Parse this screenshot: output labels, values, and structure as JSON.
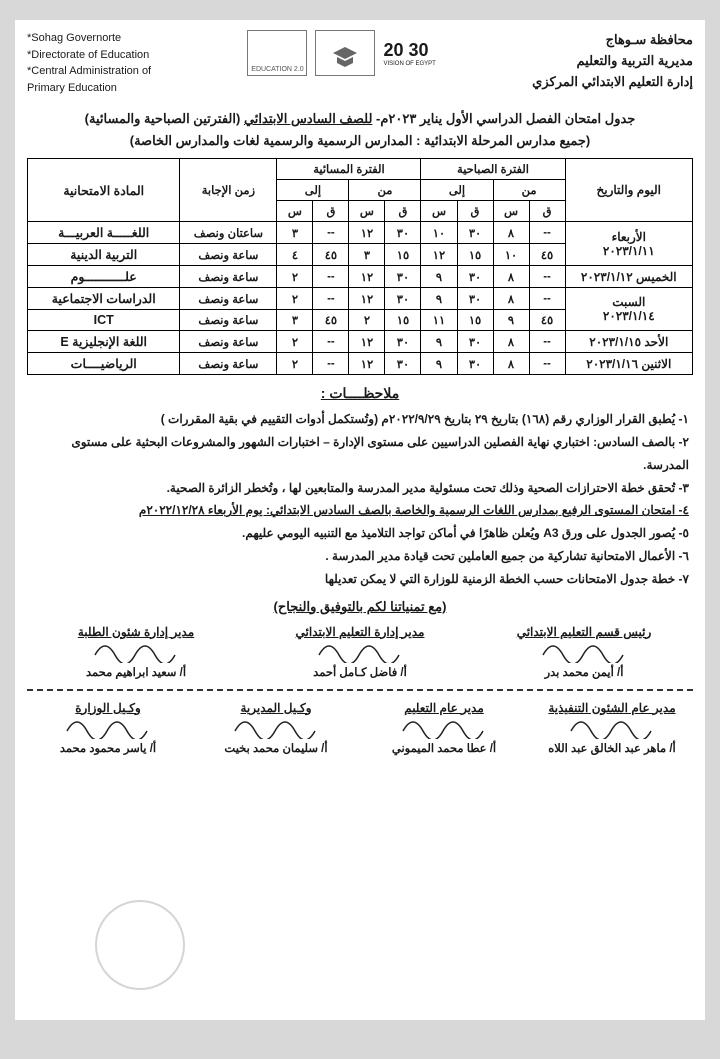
{
  "header": {
    "right": {
      "l1": "محافظة سـوهاج",
      "l2": "مديرية التربية والتعليم",
      "l3": "إدارة التعليم الابتدائي المركزي"
    },
    "left": {
      "l1": "*Sohag Governorte",
      "l2": "*Directorate of Education",
      "l3": "*Central Administration of",
      "l4": "Primary Education"
    },
    "logo2030": "20 30",
    "logoEdu": "EDUCATION 2.0",
    "logoVision": "VISION OF EGYPT"
  },
  "title": {
    "line1a": "جدول امتحان الفصل الدراسي الأول يناير ٢٠٢٣م- ",
    "line1b": "للصف السادس الابتدائي",
    "line1c": " (الفترتين الصباحية والمسائية)",
    "line2": "(جميع مدارس المرحلة الابتدائية : المدارس الرسمية والرسمية لغات والمدارس الخاصة)"
  },
  "table": {
    "headers": {
      "dayDate": "اليوم والتاريخ",
      "morning": "الفترة الصباحية",
      "evening": "الفترة المسائية",
      "from": "من",
      "to": "إلى",
      "s": "س",
      "q": "ق",
      "duration": "زمن الإجابة",
      "subject": "المادة الامتحانية"
    },
    "rows": [
      {
        "dayTop": "الأربعاء",
        "dayBot": "٢٠٢٣/١/١١",
        "span": 2,
        "sub": [
          {
            "m": [
              "--",
              "٨",
              "٣٠",
              "١٠"
            ],
            "e": [
              "٣٠",
              "١٢",
              "--",
              "٣"
            ],
            "dur": "ساعتان ونصف",
            "subj": "اللغـــــة العربيـــة"
          },
          {
            "m": [
              "٤٥",
              "١٠",
              "١٥",
              "١٢"
            ],
            "e": [
              "١٥",
              "٣",
              "٤٥",
              "٤"
            ],
            "dur": "ساعة ونصف",
            "subj": "التربية الدينية"
          }
        ]
      },
      {
        "dayTop": "الخميس ٢٠٢٣/١/١٢",
        "span": 1,
        "sub": [
          {
            "m": [
              "--",
              "٨",
              "٣٠",
              "٩"
            ],
            "e": [
              "٣٠",
              "١٢",
              "--",
              "٢"
            ],
            "dur": "ساعة ونصف",
            "subj": "علـــــــــــوم"
          }
        ]
      },
      {
        "dayTop": "السبت",
        "dayBot": "٢٠٢٣/١/١٤",
        "span": 2,
        "sub": [
          {
            "m": [
              "--",
              "٨",
              "٣٠",
              "٩"
            ],
            "e": [
              "٣٠",
              "١٢",
              "--",
              "٢"
            ],
            "dur": "ساعة ونصف",
            "subj": "الدراسات الاجتماعية"
          },
          {
            "m": [
              "٤٥",
              "٩",
              "١٥",
              "١١"
            ],
            "e": [
              "١٥",
              "٢",
              "٤٥",
              "٣"
            ],
            "dur": "ساعة ونصف",
            "subj": "ICT"
          }
        ]
      },
      {
        "dayTop": "الأحد ٢٠٢٣/١/١٥",
        "span": 1,
        "sub": [
          {
            "m": [
              "--",
              "٨",
              "٣٠",
              "٩"
            ],
            "e": [
              "٣٠",
              "١٢",
              "--",
              "٢"
            ],
            "dur": "ساعة ونصف",
            "subj": "اللغة الإنجليزية E"
          }
        ]
      },
      {
        "dayTop": "الاثنين ٢٠٢٣/١/١٦",
        "span": 1,
        "sub": [
          {
            "m": [
              "--",
              "٨",
              "٣٠",
              "٩"
            ],
            "e": [
              "٣٠",
              "١٢",
              "--",
              "٢"
            ],
            "dur": "ساعة ونصف",
            "subj": "الرياضيــــات"
          }
        ]
      }
    ]
  },
  "notesTitle": "ملاحظــــات :",
  "notes": [
    "١- يُطبق القرار الوزاري رقم (١٦٨) بتاريخ ٢٩ بتاريخ ٢٠٢٢/٩/٢٩م (وتُستكمل أدوات التقييم في بقية المقررات )",
    "٢- بالصف السادس: اختباري نهاية الفصلين الدراسيين على مستوى الإدارة – اختبارات الشهور والمشروعات البحثية على مستوى المدرسة.",
    "٣- تُحقق خطة الاحترازات الصحية وذلك تحت مسئولية مدير المدرسة والمتابعين لها ، وتُخطر الزائرة الصحية.",
    "٤- امتحان المستوى الرفيع بمدارس اللغات الرسمية والخاصة  بالصف السادس الابتدائي: يوم الأربعاء ٢٠٢٢/١٢/٢٨م",
    "٥- يُصور الجدول على ورق A3 ويُعلن ظاهرًا في أماكن تواجد التلاميذ مع التنبيه اليومي عليهم.",
    "٦- الأعمال الامتحانية تشاركية من جميع العاملين تحت قيادة مدير المدرسة .",
    "٧- خطة جدول الامتحانات حسب الخطة الزمنية للوزارة التي لا يمكن تعديلها"
  ],
  "wish": "(مع تمنياتنا لكم بالتوفيق والنجاح)",
  "sig1": [
    {
      "title": "رئيس قسم التعليم الابتدائي",
      "name": "أ/ أيمن محمد بدر"
    },
    {
      "title": "مدير إدارة التعليم الابتدائي",
      "name": "أ/ فاضل كـامل أحمد"
    },
    {
      "title": "مدير إدارة شئون الطلبة",
      "name": "أ/ سعيد ابراهيم محمد"
    }
  ],
  "sig2": [
    {
      "title": "مدير عام الشئون التنفيذية",
      "name": "أ/ ماهر عبد الخالق عبد اللاه"
    },
    {
      "title": "مدير عام التعليم",
      "name": "أ/ عطا محمد الميموني"
    },
    {
      "title": "وكـيل المديرية",
      "name": "أ/ سليمان محمد بخيت"
    },
    {
      "title": "وكـيل الوزارة",
      "name": "أ/ ياسر محمود محمد"
    }
  ]
}
